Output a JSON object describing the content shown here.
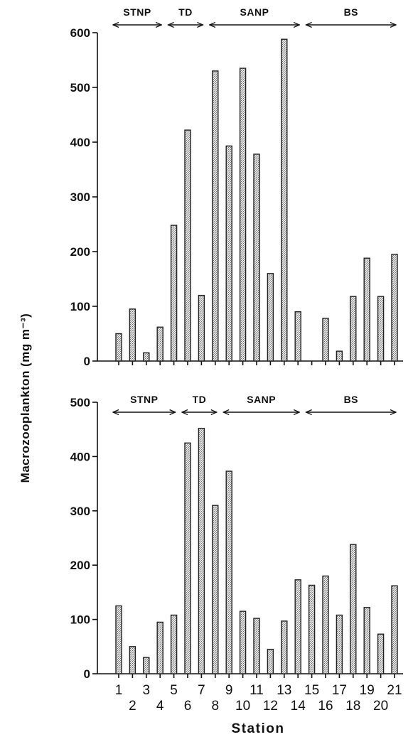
{
  "ylabel": "Macrozooplankton (mg m⁻³)",
  "xlabel": "Station",
  "x_tick_labels": [
    "1",
    "2",
    "3",
    "4",
    "5",
    "6",
    "7",
    "8",
    "9",
    "10",
    "11",
    "12",
    "13",
    "14",
    "15",
    "16",
    "17",
    "18",
    "19",
    "20",
    "21"
  ],
  "chart_data": [
    {
      "type": "bar",
      "panel": "top",
      "ylim": [
        0,
        600
      ],
      "yticks": [
        0,
        100,
        200,
        300,
        400,
        500,
        600
      ],
      "regions": [
        {
          "label": "STNP",
          "from_station": 1,
          "to_station": 4
        },
        {
          "label": "TD",
          "from_station": 5,
          "to_station": 7
        },
        {
          "label": "SANP",
          "from_station": 8,
          "to_station": 14
        },
        {
          "label": "BS",
          "from_station": 15,
          "to_station": 21
        }
      ],
      "categories": [
        "1",
        "2",
        "3",
        "4",
        "5",
        "6",
        "7",
        "8",
        "9",
        "10",
        "11",
        "12",
        "13",
        "14",
        "15",
        "16",
        "17",
        "18",
        "19",
        "20",
        "21"
      ],
      "values": [
        50,
        95,
        15,
        62,
        248,
        422,
        120,
        530,
        393,
        535,
        378,
        160,
        588,
        90,
        null,
        78,
        18,
        118,
        188,
        118,
        195
      ]
    },
    {
      "type": "bar",
      "panel": "bottom",
      "ylim": [
        0,
        500
      ],
      "yticks": [
        0,
        100,
        200,
        300,
        400,
        500
      ],
      "regions": [
        {
          "label": "STNP",
          "from_station": 1,
          "to_station": 5
        },
        {
          "label": "TD",
          "from_station": 6,
          "to_station": 8
        },
        {
          "label": "SANP",
          "from_station": 9,
          "to_station": 14
        },
        {
          "label": "BS",
          "from_station": 15,
          "to_station": 21
        }
      ],
      "categories": [
        "1",
        "2",
        "3",
        "4",
        "5",
        "6",
        "7",
        "8",
        "9",
        "10",
        "11",
        "12",
        "13",
        "14",
        "15",
        "16",
        "17",
        "18",
        "19",
        "20",
        "21"
      ],
      "values": [
        125,
        50,
        30,
        95,
        108,
        425,
        452,
        310,
        373,
        115,
        102,
        45,
        97,
        173,
        163,
        180,
        108,
        238,
        122,
        73,
        162
      ]
    }
  ]
}
